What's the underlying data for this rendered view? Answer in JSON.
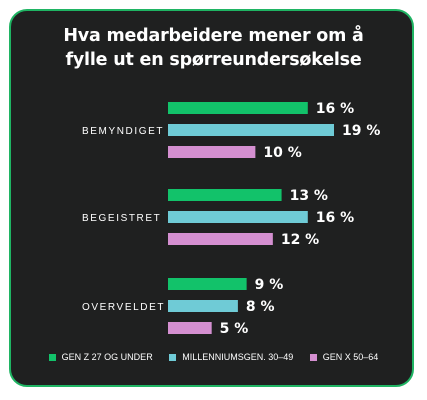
{
  "chart_data": {
    "type": "bar",
    "orientation": "horizontal",
    "title": "Hva medarbeidere mener om å fylle ut en spørreundersøkelse",
    "title_lines": [
      "Hva medarbeidere mener om å",
      "fylle ut en spørreundersøkelse"
    ],
    "categories": [
      "BEMYNDIGET",
      "BEGEISTRET",
      "OVERVELDET"
    ],
    "series": [
      {
        "name": "GEN Z 27 OG UNDER",
        "color": "#12c26a",
        "values": [
          16,
          13,
          9
        ],
        "labels": [
          "16 %",
          "13 %",
          "9 %"
        ]
      },
      {
        "name": "MILLENNIUMSGEN. 30–49",
        "color": "#6fcbd6",
        "values": [
          19,
          16,
          8
        ],
        "labels": [
          "19 %",
          "16 %",
          "8 %"
        ]
      },
      {
        "name": "GEN X 50–64",
        "color": "#d48fd0",
        "values": [
          10,
          12,
          5
        ],
        "labels": [
          "10 %",
          "12 %",
          "5 %"
        ]
      }
    ],
    "xlim": [
      0,
      19
    ],
    "grid": false,
    "legend_position": "bottom"
  },
  "colors": {
    "background": "#1f2020",
    "border": "#1fb463",
    "text": "#ffffff"
  }
}
